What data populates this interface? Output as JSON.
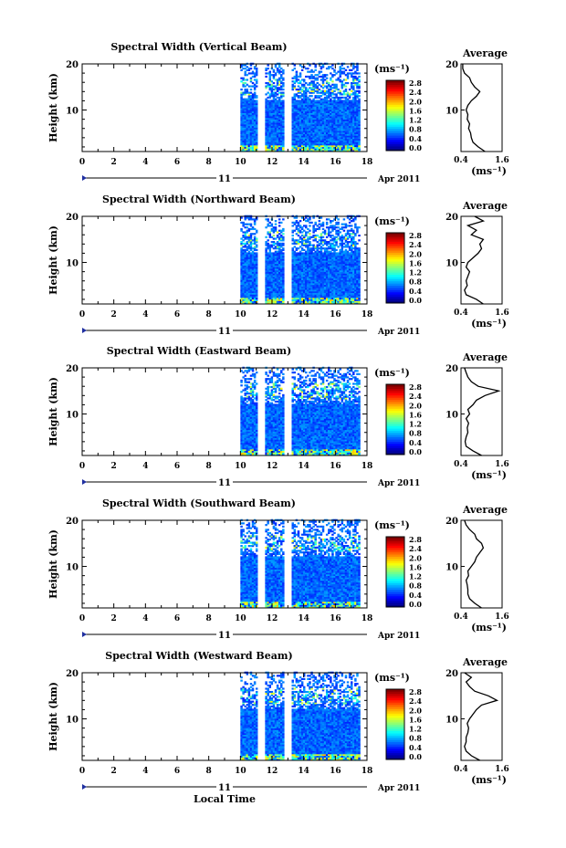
{
  "chart_data": {
    "type": "heatmap",
    "ylabel": "Height (km)",
    "xlabel": "Local Time",
    "unit_label": "(ms⁻¹)",
    "date_day_label": "11",
    "date_month_label": "Apr 2011",
    "x_ticks": [
      "0",
      "2",
      "4",
      "6",
      "8",
      "10",
      "12",
      "14",
      "16",
      "18"
    ],
    "y_ticks": [
      "20",
      "10"
    ],
    "xlim": [
      0,
      18
    ],
    "ylim": [
      1,
      20
    ],
    "colorbar_ticks": [
      "2.8",
      "2.4",
      "2.0",
      "1.6",
      "1.2",
      "0.8",
      "0.4",
      "0.0"
    ],
    "colorbar_range": [
      0.0,
      2.8
    ],
    "data_time_range": [
      10,
      17.5
    ],
    "data_gaps": [
      [
        11.1,
        11.5
      ],
      [
        12.8,
        13.2
      ]
    ],
    "average_title": "Average",
    "average_x_ticks": [
      "0.4",
      "1.6"
    ],
    "average_y_ticks": [
      "20",
      "10"
    ],
    "average_xlim": [
      0.4,
      1.6
    ],
    "panels": [
      {
        "title": "Spectral Width (Vertical Beam)",
        "average_profile": [
          [
            1,
            1.1
          ],
          [
            2,
            0.9
          ],
          [
            3,
            0.75
          ],
          [
            4,
            0.7
          ],
          [
            5,
            0.68
          ],
          [
            6,
            0.62
          ],
          [
            7,
            0.65
          ],
          [
            8,
            0.58
          ],
          [
            9,
            0.6
          ],
          [
            10,
            0.55
          ],
          [
            11,
            0.6
          ],
          [
            12,
            0.7
          ],
          [
            13,
            0.85
          ],
          [
            14,
            0.95
          ],
          [
            15,
            0.8
          ],
          [
            16,
            0.7
          ],
          [
            17,
            0.65
          ],
          [
            18,
            0.5
          ],
          [
            19,
            0.45
          ],
          [
            20,
            0.45
          ]
        ]
      },
      {
        "title": "Spectral Width (Northward Beam)",
        "average_profile": [
          [
            1,
            1.05
          ],
          [
            2,
            0.85
          ],
          [
            3,
            0.55
          ],
          [
            4,
            0.5
          ],
          [
            5,
            0.58
          ],
          [
            6,
            0.55
          ],
          [
            7,
            0.6
          ],
          [
            8,
            0.65
          ],
          [
            9,
            0.55
          ],
          [
            10,
            0.6
          ],
          [
            11,
            0.75
          ],
          [
            12,
            0.9
          ],
          [
            13,
            1.0
          ],
          [
            14,
            0.95
          ],
          [
            15,
            1.05
          ],
          [
            16,
            0.7
          ],
          [
            17,
            0.85
          ],
          [
            18,
            0.6
          ],
          [
            19,
            1.05
          ],
          [
            20,
            0.8
          ]
        ]
      },
      {
        "title": "Spectral Width (Eastward Beam)",
        "average_profile": [
          [
            1,
            1.0
          ],
          [
            2,
            0.75
          ],
          [
            3,
            0.55
          ],
          [
            4,
            0.52
          ],
          [
            5,
            0.55
          ],
          [
            6,
            0.6
          ],
          [
            7,
            0.58
          ],
          [
            8,
            0.62
          ],
          [
            9,
            0.55
          ],
          [
            10,
            0.65
          ],
          [
            11,
            0.6
          ],
          [
            12,
            0.75
          ],
          [
            13,
            0.85
          ],
          [
            14,
            1.1
          ],
          [
            15,
            1.5
          ],
          [
            16,
            0.9
          ],
          [
            17,
            0.7
          ],
          [
            18,
            0.6
          ],
          [
            19,
            0.55
          ],
          [
            20,
            0.5
          ]
        ]
      },
      {
        "title": "Spectral Width (Southward Beam)",
        "average_profile": [
          [
            1,
            1.0
          ],
          [
            2,
            0.8
          ],
          [
            3,
            0.65
          ],
          [
            4,
            0.6
          ],
          [
            5,
            0.6
          ],
          [
            6,
            0.58
          ],
          [
            7,
            0.55
          ],
          [
            8,
            0.62
          ],
          [
            9,
            0.6
          ],
          [
            10,
            0.7
          ],
          [
            11,
            0.8
          ],
          [
            12,
            0.85
          ],
          [
            13,
            0.95
          ],
          [
            14,
            1.05
          ],
          [
            15,
            1.0
          ],
          [
            16,
            0.85
          ],
          [
            17,
            0.8
          ],
          [
            18,
            0.65
          ],
          [
            19,
            0.55
          ],
          [
            20,
            0.5
          ]
        ]
      },
      {
        "title": "Spectral Width (Westward Beam)",
        "average_profile": [
          [
            1,
            0.95
          ],
          [
            2,
            0.7
          ],
          [
            3,
            0.55
          ],
          [
            4,
            0.5
          ],
          [
            5,
            0.55
          ],
          [
            6,
            0.55
          ],
          [
            7,
            0.6
          ],
          [
            8,
            0.62
          ],
          [
            9,
            0.58
          ],
          [
            10,
            0.65
          ],
          [
            11,
            0.75
          ],
          [
            12,
            0.85
          ],
          [
            13,
            1.0
          ],
          [
            14,
            1.45
          ],
          [
            15,
            1.2
          ],
          [
            16,
            0.8
          ],
          [
            17,
            0.65
          ],
          [
            18,
            0.55
          ],
          [
            19,
            0.7
          ],
          [
            20,
            0.5
          ]
        ]
      }
    ]
  }
}
